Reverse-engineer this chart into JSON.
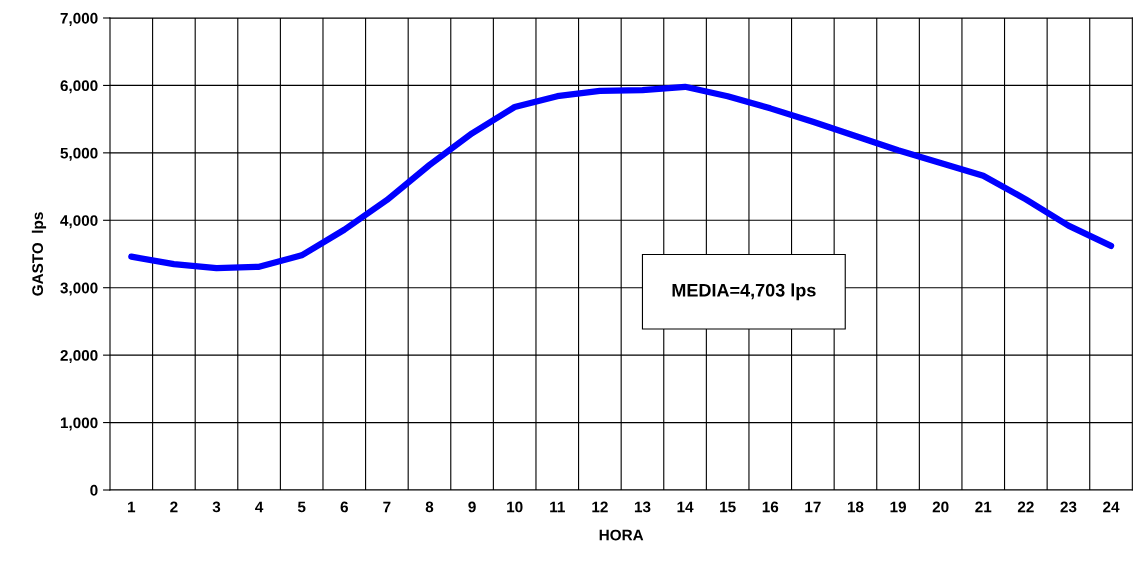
{
  "chart_data": {
    "type": "line",
    "xlabel": "HORA",
    "ylabel": "GASTO  lps",
    "categories": [
      "1",
      "2",
      "3",
      "4",
      "5",
      "6",
      "7",
      "8",
      "9",
      "10",
      "11",
      "12",
      "13",
      "14",
      "15",
      "16",
      "17",
      "18",
      "19",
      "20",
      "21",
      "22",
      "23",
      "24"
    ],
    "series": [
      {
        "color": "#0000ff",
        "values": [
          3460,
          3350,
          3290,
          3310,
          3480,
          3860,
          4300,
          4820,
          5290,
          5680,
          5840,
          5920,
          5930,
          5980,
          5840,
          5660,
          5460,
          5250,
          5040,
          4850,
          4660,
          4310,
          3920,
          3620
        ]
      }
    ],
    "ylim": [
      0,
      7000
    ],
    "yticks": [
      {
        "value": 0,
        "label": "0"
      },
      {
        "value": 1000,
        "label": "1,000"
      },
      {
        "value": 2000,
        "label": "2,000"
      },
      {
        "value": 3000,
        "label": "3,000"
      },
      {
        "value": 4000,
        "label": "4,000"
      },
      {
        "value": 5000,
        "label": "5,000"
      },
      {
        "value": 6000,
        "label": "6,000"
      },
      {
        "value": 7000,
        "label": "7,000"
      }
    ],
    "grid": true,
    "marker": "none",
    "line_style": "solid",
    "annotations": [
      "MEDIA=4,703 lps"
    ]
  }
}
